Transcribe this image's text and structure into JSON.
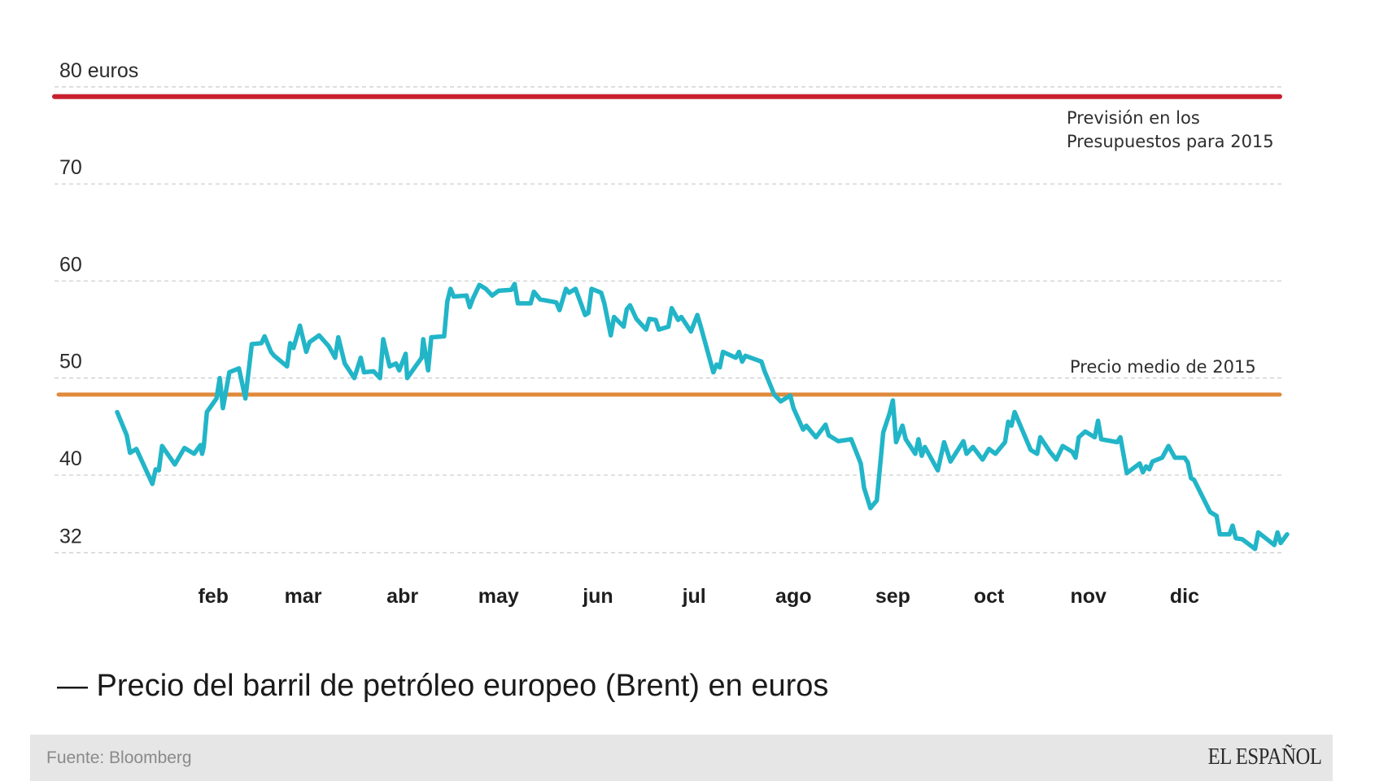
{
  "chart_data": {
    "type": "line",
    "title": "— Precio del barril de petróleo europeo (Brent) en euros",
    "xlabel": "",
    "ylabel": "",
    "ylim": [
      32,
      80
    ],
    "xlim_days": [
      0,
      365
    ],
    "grid": true,
    "y_ticks": [
      {
        "value": 80,
        "label": "80 euros"
      },
      {
        "value": 70,
        "label": "70"
      },
      {
        "value": 60,
        "label": "60"
      },
      {
        "value": 50,
        "label": "50"
      },
      {
        "value": 40,
        "label": "40"
      },
      {
        "value": 32,
        "label": "32"
      }
    ],
    "x_ticks": [
      {
        "day": 30,
        "label": "feb"
      },
      {
        "day": 58,
        "label": "mar"
      },
      {
        "day": 89,
        "label": "abr"
      },
      {
        "day": 119,
        "label": "may"
      },
      {
        "day": 150,
        "label": "jun"
      },
      {
        "day": 180,
        "label": "jul"
      },
      {
        "day": 211,
        "label": "ago"
      },
      {
        "day": 242,
        "label": "sep"
      },
      {
        "day": 272,
        "label": "oct"
      },
      {
        "day": 303,
        "label": "nov"
      },
      {
        "day": 333,
        "label": "dic"
      }
    ],
    "reference_lines": [
      {
        "name": "Previsión en los Presupuestos para 2015",
        "value": 80,
        "color": "#c8202f",
        "label_lines": [
          "Previsión en los",
          "Presupuestos para 2015"
        ]
      },
      {
        "name": "Precio medio de 2015",
        "value": 48.8,
        "color": "#e08a3c",
        "label_lines": [
          "Precio medio de 2015"
        ]
      }
    ],
    "series": [
      {
        "name": "Precio del barril de petróleo europeo (Brent) en euros",
        "color": "#22b5c8",
        "x_unit": "day_of_year_2015",
        "points": [
          [
            0,
            47.0
          ],
          [
            3,
            44.6
          ],
          [
            4,
            42.8
          ],
          [
            6,
            43.2
          ],
          [
            11,
            39.6
          ],
          [
            12,
            41.1
          ],
          [
            13,
            41.0
          ],
          [
            14,
            43.5
          ],
          [
            18,
            41.6
          ],
          [
            21,
            43.3
          ],
          [
            24,
            42.7
          ],
          [
            26,
            43.6
          ],
          [
            26.5,
            42.7
          ],
          [
            27,
            43.4
          ],
          [
            28,
            47.0
          ],
          [
            31,
            48.4
          ],
          [
            32,
            50.5
          ],
          [
            33,
            47.4
          ],
          [
            35,
            51.1
          ],
          [
            38,
            51.5
          ],
          [
            40,
            48.4
          ],
          [
            42,
            54.0
          ],
          [
            45,
            54.1
          ],
          [
            46,
            54.8
          ],
          [
            48,
            53.2
          ],
          [
            49,
            52.8
          ],
          [
            53,
            51.7
          ],
          [
            54,
            54.1
          ],
          [
            55,
            53.6
          ],
          [
            57,
            55.9
          ],
          [
            59,
            53.2
          ],
          [
            60,
            54.2
          ],
          [
            63,
            54.9
          ],
          [
            66,
            53.8
          ],
          [
            68,
            52.6
          ],
          [
            69,
            54.7
          ],
          [
            71,
            52.0
          ],
          [
            74,
            50.5
          ],
          [
            76,
            52.6
          ],
          [
            77,
            51.1
          ],
          [
            80,
            51.2
          ],
          [
            82,
            50.5
          ],
          [
            83,
            54.5
          ],
          [
            85,
            51.7
          ],
          [
            87,
            52.0
          ],
          [
            88,
            51.3
          ],
          [
            90,
            53.0
          ],
          [
            90.5,
            50.5
          ],
          [
            95,
            52.6
          ],
          [
            95.5,
            54.5
          ],
          [
            97,
            51.3
          ],
          [
            98,
            54.7
          ],
          [
            102,
            54.8
          ],
          [
            103,
            58.4
          ],
          [
            104,
            59.7
          ],
          [
            105,
            58.9
          ],
          [
            109,
            59.0
          ],
          [
            110,
            57.8
          ],
          [
            111,
            58.7
          ],
          [
            113,
            60.1
          ],
          [
            115,
            59.7
          ],
          [
            117,
            59.0
          ],
          [
            119,
            59.5
          ],
          [
            123,
            59.6
          ],
          [
            124,
            60.2
          ],
          [
            125,
            58.2
          ],
          [
            129,
            58.2
          ],
          [
            130,
            59.4
          ],
          [
            132,
            58.6
          ],
          [
            137,
            58.3
          ],
          [
            138,
            57.5
          ],
          [
            140,
            59.7
          ],
          [
            141,
            59.3
          ],
          [
            143,
            59.7
          ],
          [
            146,
            57.0
          ],
          [
            147,
            57.2
          ],
          [
            148,
            59.7
          ],
          [
            151,
            59.3
          ],
          [
            152,
            58.2
          ],
          [
            154,
            54.9
          ],
          [
            155,
            56.8
          ],
          [
            158,
            55.8
          ],
          [
            159,
            57.6
          ],
          [
            160,
            58.0
          ],
          [
            162,
            56.6
          ],
          [
            165,
            55.5
          ],
          [
            166,
            56.6
          ],
          [
            168,
            56.5
          ],
          [
            169,
            55.5
          ],
          [
            172,
            55.8
          ],
          [
            173,
            57.7
          ],
          [
            175,
            56.5
          ],
          [
            176,
            56.8
          ],
          [
            179,
            55.3
          ],
          [
            181,
            57.0
          ],
          [
            182,
            55.9
          ],
          [
            186,
            51.1
          ],
          [
            187,
            51.9
          ],
          [
            188,
            51.6
          ],
          [
            189,
            53.2
          ],
          [
            193,
            52.6
          ],
          [
            194,
            53.2
          ],
          [
            195,
            52.2
          ],
          [
            196,
            52.8
          ],
          [
            201,
            52.2
          ],
          [
            202,
            51.2
          ],
          [
            203,
            50.4
          ],
          [
            205,
            48.8
          ],
          [
            207,
            48.1
          ],
          [
            210,
            48.7
          ],
          [
            211,
            47.4
          ],
          [
            214,
            45.2
          ],
          [
            215,
            45.6
          ],
          [
            218,
            44.4
          ],
          [
            221,
            45.7
          ],
          [
            222,
            44.6
          ],
          [
            225,
            44.0
          ],
          [
            229,
            44.2
          ],
          [
            232,
            41.7
          ],
          [
            233,
            39.2
          ],
          [
            235,
            37.1
          ],
          [
            237,
            37.9
          ],
          [
            239,
            44.9
          ],
          [
            241,
            46.9
          ],
          [
            242,
            48.2
          ],
          [
            243,
            43.9
          ],
          [
            245,
            45.6
          ],
          [
            246,
            44.2
          ],
          [
            249,
            42.7
          ],
          [
            250,
            44.2
          ],
          [
            251,
            42.5
          ],
          [
            252,
            43.4
          ],
          [
            256,
            41.0
          ],
          [
            258,
            43.9
          ],
          [
            260,
            41.9
          ],
          [
            264,
            44.0
          ],
          [
            265,
            42.7
          ],
          [
            267,
            43.4
          ],
          [
            270,
            42.1
          ],
          [
            272,
            43.2
          ],
          [
            274,
            42.7
          ],
          [
            277,
            43.9
          ],
          [
            278,
            46.0
          ],
          [
            279,
            45.6
          ],
          [
            280,
            47.0
          ],
          [
            285,
            43.1
          ],
          [
            287,
            42.7
          ],
          [
            288,
            44.4
          ],
          [
            291,
            42.9
          ],
          [
            293,
            42.1
          ],
          [
            295,
            43.5
          ],
          [
            298,
            42.9
          ],
          [
            299,
            42.3
          ],
          [
            300,
            44.4
          ],
          [
            302,
            45.0
          ],
          [
            305,
            44.4
          ],
          [
            306,
            46.1
          ],
          [
            307,
            44.2
          ],
          [
            312,
            43.9
          ],
          [
            313,
            44.4
          ],
          [
            315,
            40.7
          ],
          [
            319,
            41.7
          ],
          [
            320,
            40.8
          ],
          [
            321,
            41.4
          ],
          [
            322,
            41.1
          ],
          [
            323,
            41.9
          ],
          [
            326,
            42.3
          ],
          [
            328,
            43.5
          ],
          [
            330,
            42.3
          ],
          [
            333,
            42.3
          ],
          [
            334,
            41.8
          ],
          [
            335,
            40.2
          ],
          [
            336,
            40.0
          ],
          [
            341,
            36.7
          ],
          [
            343,
            36.3
          ],
          [
            344,
            34.4
          ],
          [
            347,
            34.4
          ],
          [
            348,
            35.3
          ],
          [
            349,
            34.0
          ],
          [
            351,
            33.9
          ],
          [
            355,
            32.9
          ],
          [
            356,
            34.6
          ],
          [
            361,
            33.3
          ],
          [
            362,
            34.6
          ],
          [
            363,
            33.5
          ],
          [
            365,
            34.4
          ]
        ]
      }
    ]
  },
  "title": "— Precio del barril de petróleo europeo (Brent) en euros",
  "footer": {
    "source": "Fuente: Bloomberg",
    "logo": "EL ESPAÑOL"
  }
}
